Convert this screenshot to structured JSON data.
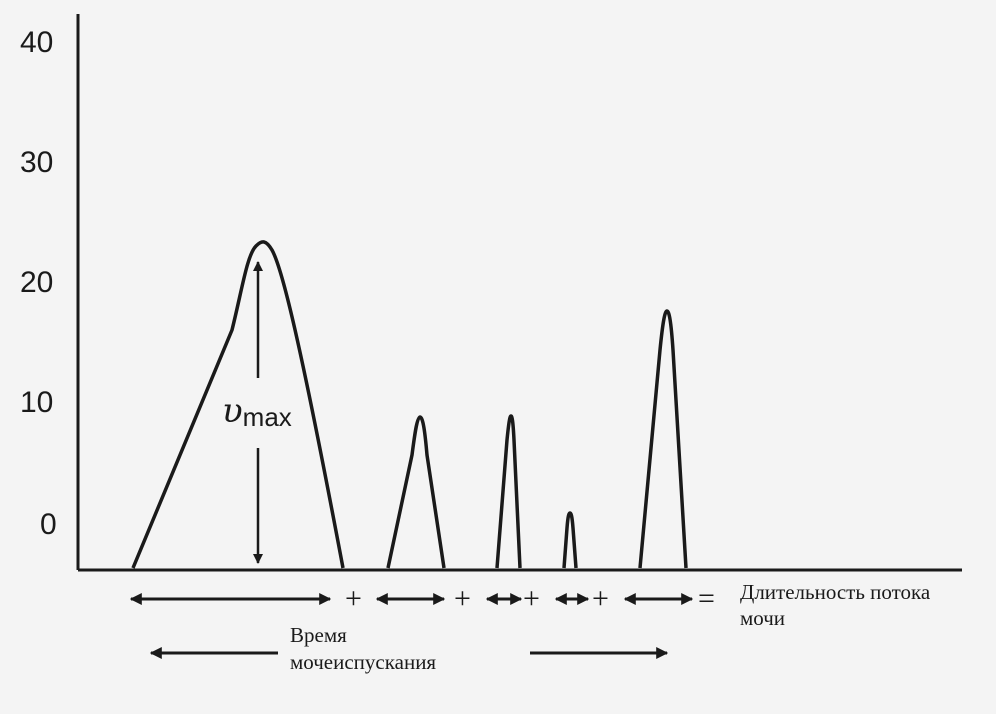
{
  "chart_data": {
    "type": "line",
    "title": "",
    "xlabel": "",
    "ylabel": "",
    "y_tick_labels": [
      "40",
      "30",
      "20",
      "10",
      "0"
    ],
    "peaks": [
      {
        "peak_label": "υ",
        "peak_sub": "max"
      },
      {},
      {},
      {},
      {}
    ],
    "operators": [
      "+",
      "+",
      "+",
      "+",
      "="
    ],
    "flow_duration_label": [
      "Длительность потока",
      "мочи"
    ],
    "voiding_time_label": [
      "Время",
      "мочеиспускания"
    ],
    "grid": false
  }
}
